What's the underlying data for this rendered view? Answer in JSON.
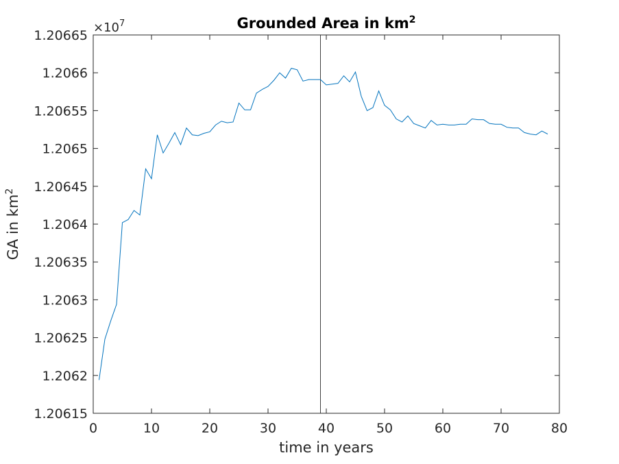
{
  "chart_data": {
    "type": "line",
    "title": "Grounded Area in km",
    "title_superscript": "2",
    "xlabel": "time in years",
    "ylabel": "GA in km",
    "ylabel_superscript": "2",
    "y_exponent_base": "×10",
    "y_exponent_power": "7",
    "xlim": [
      0,
      80
    ],
    "ylim": [
      1.20615,
      1.20665
    ],
    "x_ticks": [
      0,
      10,
      20,
      30,
      40,
      50,
      60,
      70,
      80
    ],
    "x_tick_labels": [
      "0",
      "10",
      "20",
      "30",
      "40",
      "50",
      "60",
      "70",
      "80"
    ],
    "y_ticks": [
      1.20615,
      1.2062,
      1.20625,
      1.2063,
      1.20635,
      1.2064,
      1.20645,
      1.2065,
      1.20655,
      1.2066,
      1.20665
    ],
    "y_tick_labels": [
      "1.20615",
      "1.2062",
      "1.20625",
      "1.2063",
      "1.20635",
      "1.2064",
      "1.20645",
      "1.2065",
      "1.20655",
      "1.2066",
      "1.20665"
    ],
    "grid": false,
    "vertical_line_x": 39,
    "line_color": "#0072bd",
    "vline_color": "#404040",
    "series": [
      {
        "x": [
          1,
          2,
          3,
          4,
          5,
          6,
          7,
          8,
          9,
          10,
          11,
          12,
          13,
          14,
          15,
          16,
          17,
          18,
          19,
          20,
          21,
          22,
          23,
          24,
          25,
          26,
          27,
          28,
          29,
          30,
          31,
          32,
          33,
          34,
          35,
          36,
          37,
          38,
          39,
          40,
          41,
          42,
          43,
          44,
          45,
          46,
          47,
          48,
          49,
          50,
          51,
          52,
          53,
          54,
          55,
          56,
          57,
          58,
          59,
          60,
          61,
          62,
          63,
          64,
          65,
          66,
          67,
          68,
          69,
          70,
          71,
          72,
          73,
          74,
          75,
          76,
          77,
          78
        ],
        "values": [
          1.206194,
          1.206248,
          1.206272,
          1.206294,
          1.206402,
          1.206406,
          1.206418,
          1.206412,
          1.206473,
          1.20646,
          1.206518,
          1.206494,
          1.206507,
          1.206521,
          1.206505,
          1.206527,
          1.206518,
          1.206517,
          1.20652,
          1.206522,
          1.206531,
          1.206536,
          1.206534,
          1.206535,
          1.20656,
          1.206551,
          1.206551,
          1.206573,
          1.206578,
          1.206582,
          1.20659,
          1.2066,
          1.206593,
          1.206606,
          1.206604,
          1.206589,
          1.206591,
          1.206591,
          1.206591,
          1.206584,
          1.206585,
          1.206586,
          1.206596,
          1.206588,
          1.206601,
          1.206569,
          1.20655,
          1.206554,
          1.206576,
          1.206557,
          1.206551,
          1.206539,
          1.206535,
          1.206543,
          1.206533,
          1.20653,
          1.206527,
          1.206537,
          1.206531,
          1.206532,
          1.206531,
          1.206531,
          1.206532,
          1.206532,
          1.206539,
          1.206538,
          1.206538,
          1.206533,
          1.206532,
          1.206532,
          1.206528,
          1.206527,
          1.206527,
          1.206521,
          1.206519,
          1.206518,
          1.206523,
          1.206519
        ]
      }
    ]
  }
}
